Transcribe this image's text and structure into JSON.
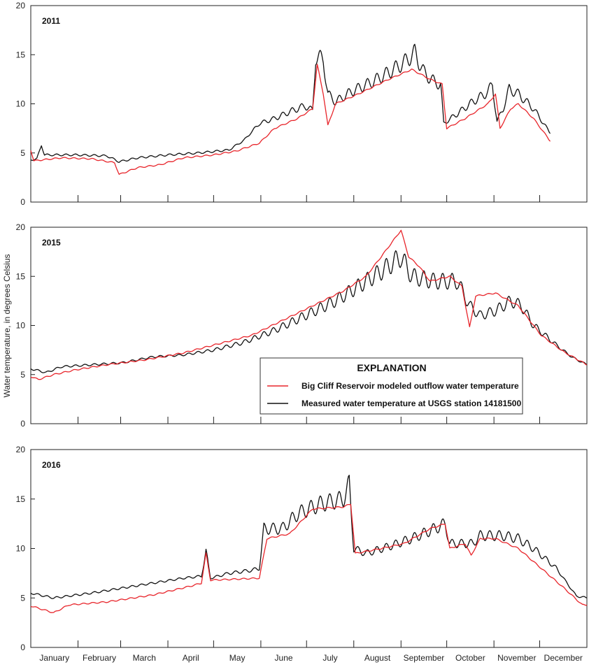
{
  "chart_data": {
    "type": "line",
    "ylabel": "Water temperature, in degrees Celsius",
    "ylim": [
      0,
      20
    ],
    "yticks": [
      0,
      5,
      10,
      15,
      20
    ],
    "x_unit": "day of year",
    "xlim": [
      0,
      365
    ],
    "months": [
      "January",
      "February",
      "March",
      "April",
      "May",
      "June",
      "July",
      "August",
      "September",
      "October",
      "November",
      "December"
    ],
    "month_starts": [
      0,
      31,
      59,
      90,
      120,
      151,
      181,
      212,
      243,
      273,
      304,
      334
    ],
    "legend": {
      "title": "EXPLANATION",
      "placement": "middle panel, lower-right",
      "entries": [
        {
          "name": "Big Cliff Reservoir modeled outflow water temperature",
          "color": "#e8252b"
        },
        {
          "name": "Measured water temperature at USGS station 14181500",
          "color": "#111111"
        }
      ]
    },
    "panels": [
      {
        "title": "2011",
        "series": [
          {
            "name": "Measured water temperature at USGS station 14181500",
            "color": "#111111",
            "points": [
              [
                0,
                4.3
              ],
              [
                4,
                4.4
              ],
              [
                7,
                5.8
              ],
              [
                9,
                4.8
              ],
              [
                30,
                4.8
              ],
              [
                50,
                4.7
              ],
              [
                58,
                4.1
              ],
              [
                70,
                4.5
              ],
              [
                90,
                4.8
              ],
              [
                110,
                5.0
              ],
              [
                130,
                5.3
              ],
              [
                140,
                6.3
              ],
              [
                150,
                8.0
              ],
              [
                160,
                8.5
              ],
              [
                170,
                9.2
              ],
              [
                180,
                9.8
              ],
              [
                185,
                9.3
              ],
              [
                187,
                14.8
              ],
              [
                192,
                14.5
              ],
              [
                195,
                11.0
              ],
              [
                200,
                10.2
              ],
              [
                210,
                11.2
              ],
              [
                225,
                12.3
              ],
              [
                235,
                13.2
              ],
              [
                245,
                14.2
              ],
              [
                252,
                15.2
              ],
              [
                258,
                13.2
              ],
              [
                265,
                12.2
              ],
              [
                269,
                12.0
              ],
              [
                271,
                8.0
              ],
              [
                280,
                9.0
              ],
              [
                290,
                10.2
              ],
              [
                300,
                11.2
              ],
              [
                303,
                12.0
              ],
              [
                306,
                8.2
              ],
              [
                310,
                9.5
              ],
              [
                314,
                11.5
              ],
              [
                320,
                11.0
              ],
              [
                330,
                9.5
              ],
              [
                341,
                7.0
              ]
            ]
          },
          {
            "name": "Big Cliff Reservoir modeled outflow water temperature",
            "color": "#e8252b",
            "points": [
              [
                0,
                5.3
              ],
              [
                2,
                4.2
              ],
              [
                20,
                4.5
              ],
              [
                40,
                4.4
              ],
              [
                55,
                4.0
              ],
              [
                58,
                2.8
              ],
              [
                70,
                3.5
              ],
              [
                85,
                3.8
              ],
              [
                100,
                4.5
              ],
              [
                120,
                4.8
              ],
              [
                135,
                5.2
              ],
              [
                150,
                6.0
              ],
              [
                160,
                7.5
              ],
              [
                175,
                8.5
              ],
              [
                185,
                9.5
              ],
              [
                188,
                14.0
              ],
              [
                192,
                11.0
              ],
              [
                195,
                7.8
              ],
              [
                200,
                10.0
              ],
              [
                215,
                11.0
              ],
              [
                235,
                12.5
              ],
              [
                250,
                13.5
              ],
              [
                262,
                12.5
              ],
              [
                270,
                12.0
              ],
              [
                273,
                7.5
              ],
              [
                285,
                8.5
              ],
              [
                300,
                10.0
              ],
              [
                305,
                11.0
              ],
              [
                308,
                7.5
              ],
              [
                315,
                9.5
              ],
              [
                320,
                10.0
              ],
              [
                330,
                8.5
              ],
              [
                341,
                6.2
              ]
            ]
          }
        ]
      },
      {
        "title": "2015",
        "series": [
          {
            "name": "Measured water temperature at USGS station 14181500",
            "color": "#111111",
            "points": [
              [
                0,
                5.6
              ],
              [
                10,
                5.2
              ],
              [
                20,
                5.8
              ],
              [
                40,
                6.0
              ],
              [
                60,
                6.2
              ],
              [
                80,
                6.8
              ],
              [
                100,
                7.0
              ],
              [
                120,
                7.5
              ],
              [
                140,
                8.3
              ],
              [
                160,
                9.5
              ],
              [
                180,
                11.0
              ],
              [
                200,
                12.5
              ],
              [
                215,
                14.0
              ],
              [
                230,
                15.5
              ],
              [
                243,
                17.0
              ],
              [
                250,
                15.0
              ],
              [
                265,
                14.5
              ],
              [
                280,
                14.5
              ],
              [
                288,
                12.0
              ],
              [
                295,
                11.0
              ],
              [
                305,
                11.5
              ],
              [
                315,
                12.5
              ],
              [
                322,
                12.0
              ],
              [
                330,
                10.0
              ],
              [
                345,
                8.0
              ],
              [
                355,
                6.8
              ],
              [
                365,
                6.0
              ]
            ]
          },
          {
            "name": "Big Cliff Reservoir modeled outflow water temperature",
            "color": "#e8252b",
            "points": [
              [
                0,
                4.8
              ],
              [
                5,
                4.5
              ],
              [
                15,
                5.0
              ],
              [
                30,
                5.5
              ],
              [
                50,
                6.0
              ],
              [
                75,
                6.5
              ],
              [
                100,
                7.2
              ],
              [
                120,
                8.0
              ],
              [
                145,
                9.0
              ],
              [
                165,
                10.5
              ],
              [
                185,
                12.0
              ],
              [
                205,
                13.5
              ],
              [
                220,
                15.0
              ],
              [
                230,
                17.0
              ],
              [
                243,
                19.7
              ],
              [
                248,
                17.0
              ],
              [
                255,
                16.0
              ],
              [
                262,
                14.5
              ],
              [
                275,
                15.0
              ],
              [
                283,
                14.0
              ],
              [
                288,
                9.8
              ],
              [
                292,
                13.0
              ],
              [
                305,
                13.3
              ],
              [
                320,
                12.0
              ],
              [
                335,
                9.0
              ],
              [
                350,
                7.3
              ],
              [
                365,
                6.0
              ]
            ]
          }
        ]
      },
      {
        "title": "2016",
        "series": [
          {
            "name": "Measured water temperature at USGS station 14181500",
            "color": "#111111",
            "points": [
              [
                0,
                5.5
              ],
              [
                15,
                5.0
              ],
              [
                40,
                5.5
              ],
              [
                60,
                6.0
              ],
              [
                80,
                6.5
              ],
              [
                100,
                7.0
              ],
              [
                112,
                7.2
              ],
              [
                115,
                9.7
              ],
              [
                118,
                7.0
              ],
              [
                130,
                7.5
              ],
              [
                145,
                7.8
              ],
              [
                150,
                8.0
              ],
              [
                153,
                12.0
              ],
              [
                165,
                12.0
              ],
              [
                175,
                13.5
              ],
              [
                190,
                14.5
              ],
              [
                205,
                15.0
              ],
              [
                209,
                16.5
              ],
              [
                212,
                10.0
              ],
              [
                220,
                9.5
              ],
              [
                235,
                10.2
              ],
              [
                250,
                11.0
              ],
              [
                265,
                12.0
              ],
              [
                272,
                12.5
              ],
              [
                275,
                10.5
              ],
              [
                290,
                10.5
              ],
              [
                295,
                11.3
              ],
              [
                310,
                11.3
              ],
              [
                320,
                11.0
              ],
              [
                330,
                10.0
              ],
              [
                345,
                8.0
              ],
              [
                358,
                5.2
              ],
              [
                365,
                5.0
              ]
            ]
          },
          {
            "name": "Big Cliff Reservoir modeled outflow water temperature",
            "color": "#e8252b",
            "points": [
              [
                0,
                4.2
              ],
              [
                15,
                3.5
              ],
              [
                25,
                4.3
              ],
              [
                50,
                4.6
              ],
              [
                80,
                5.3
              ],
              [
                105,
                6.2
              ],
              [
                112,
                6.5
              ],
              [
                115,
                9.5
              ],
              [
                118,
                6.8
              ],
              [
                150,
                7.0
              ],
              [
                155,
                11.0
              ],
              [
                170,
                11.5
              ],
              [
                185,
                14.0
              ],
              [
                205,
                14.2
              ],
              [
                210,
                14.5
              ],
              [
                213,
                9.5
              ],
              [
                230,
                10.0
              ],
              [
                245,
                10.5
              ],
              [
                262,
                12.0
              ],
              [
                272,
                12.5
              ],
              [
                275,
                10.0
              ],
              [
                285,
                10.5
              ],
              [
                289,
                9.3
              ],
              [
                295,
                11.0
              ],
              [
                305,
                11.0
              ],
              [
                320,
                10.0
              ],
              [
                335,
                8.0
              ],
              [
                350,
                6.0
              ],
              [
                362,
                4.3
              ],
              [
                365,
                4.3
              ]
            ]
          }
        ]
      }
    ]
  }
}
